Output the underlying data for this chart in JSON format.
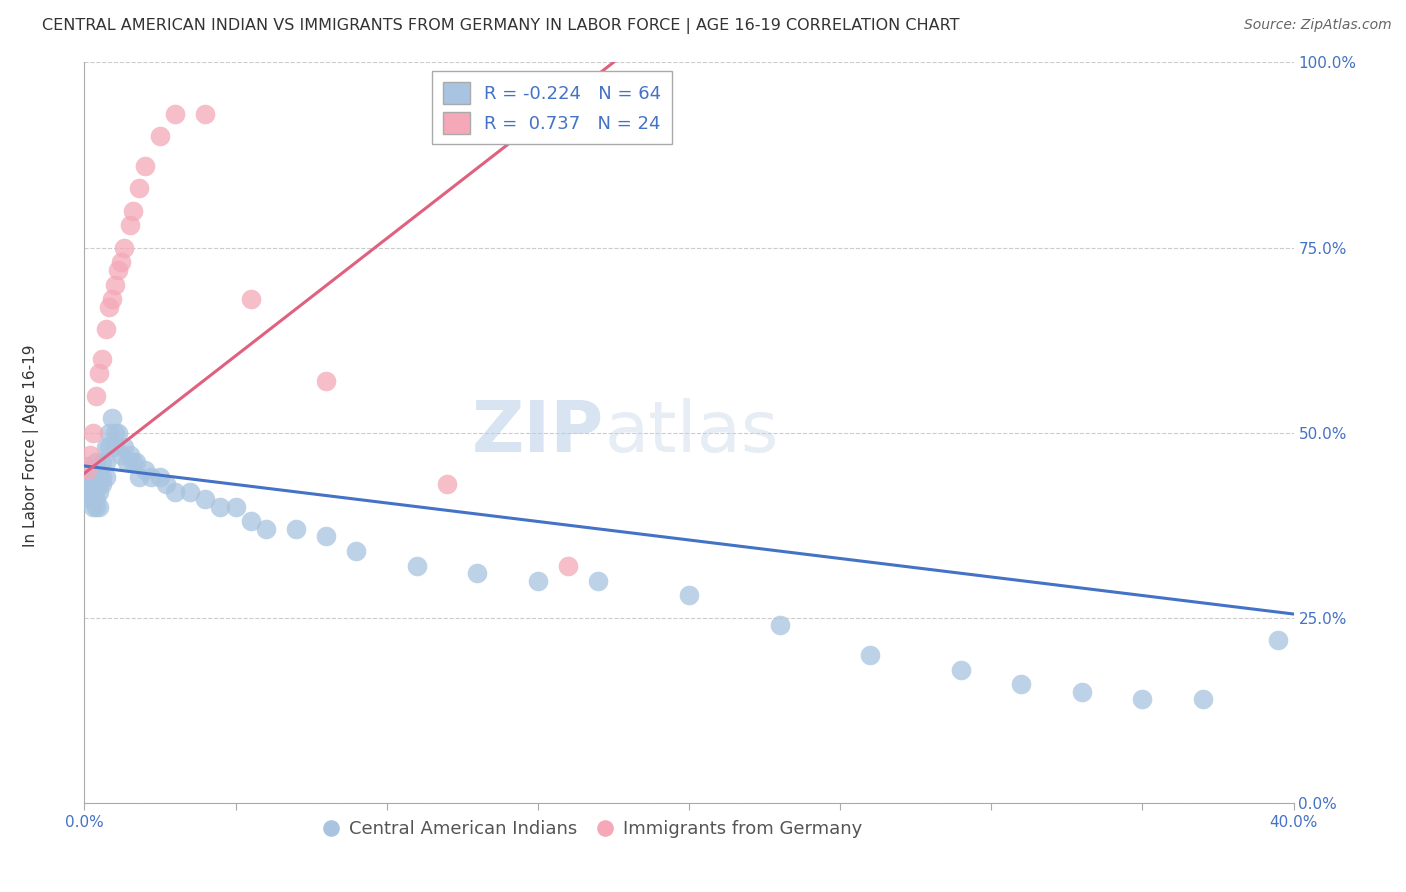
{
  "title": "CENTRAL AMERICAN INDIAN VS IMMIGRANTS FROM GERMANY IN LABOR FORCE | AGE 16-19 CORRELATION CHART",
  "source": "Source: ZipAtlas.com",
  "ylabel": "In Labor Force | Age 16-19",
  "blue_label": "Central American Indians",
  "pink_label": "Immigrants from Germany",
  "blue_R": -0.224,
  "blue_N": 64,
  "pink_R": 0.737,
  "pink_N": 24,
  "blue_color": "#a8c4e0",
  "pink_color": "#f4a8b8",
  "blue_line_color": "#4472c4",
  "pink_line_color": "#e06080",
  "watermark_zip": "ZIP",
  "watermark_atlas": "atlas",
  "xlim": [
    0.0,
    0.4
  ],
  "ylim": [
    0.0,
    1.0
  ],
  "background_color": "#ffffff",
  "grid_color": "#cccccc",
  "title_color": "#333333",
  "source_color": "#666666",
  "tick_color": "#4472c4",
  "ylabel_color": "#333333",
  "title_fontsize": 11.5,
  "axis_label_fontsize": 11,
  "tick_fontsize": 11,
  "legend_fontsize": 13,
  "source_fontsize": 10,
  "blue_x": [
    0.001,
    0.001,
    0.001,
    0.002,
    0.002,
    0.002,
    0.003,
    0.003,
    0.003,
    0.003,
    0.004,
    0.004,
    0.004,
    0.004,
    0.005,
    0.005,
    0.005,
    0.005,
    0.006,
    0.006,
    0.006,
    0.007,
    0.007,
    0.007,
    0.008,
    0.008,
    0.009,
    0.01,
    0.01,
    0.011,
    0.012,
    0.013,
    0.014,
    0.015,
    0.016,
    0.017,
    0.018,
    0.02,
    0.022,
    0.025,
    0.027,
    0.03,
    0.035,
    0.04,
    0.045,
    0.05,
    0.055,
    0.06,
    0.07,
    0.08,
    0.09,
    0.11,
    0.13,
    0.15,
    0.17,
    0.2,
    0.23,
    0.26,
    0.29,
    0.31,
    0.33,
    0.35,
    0.37,
    0.395
  ],
  "blue_y": [
    0.455,
    0.43,
    0.42,
    0.44,
    0.43,
    0.41,
    0.44,
    0.43,
    0.41,
    0.4,
    0.46,
    0.43,
    0.41,
    0.4,
    0.44,
    0.43,
    0.42,
    0.4,
    0.46,
    0.44,
    0.43,
    0.48,
    0.46,
    0.44,
    0.5,
    0.48,
    0.52,
    0.5,
    0.48,
    0.5,
    0.47,
    0.48,
    0.46,
    0.47,
    0.46,
    0.46,
    0.44,
    0.45,
    0.44,
    0.44,
    0.43,
    0.42,
    0.42,
    0.41,
    0.4,
    0.4,
    0.38,
    0.37,
    0.37,
    0.36,
    0.34,
    0.32,
    0.31,
    0.3,
    0.3,
    0.28,
    0.24,
    0.2,
    0.18,
    0.16,
    0.15,
    0.14,
    0.14,
    0.22
  ],
  "pink_x": [
    0.001,
    0.002,
    0.003,
    0.004,
    0.005,
    0.006,
    0.007,
    0.008,
    0.009,
    0.01,
    0.011,
    0.012,
    0.013,
    0.015,
    0.016,
    0.018,
    0.02,
    0.025,
    0.03,
    0.04,
    0.055,
    0.08,
    0.12,
    0.16
  ],
  "pink_y": [
    0.45,
    0.47,
    0.5,
    0.55,
    0.58,
    0.6,
    0.64,
    0.67,
    0.68,
    0.7,
    0.72,
    0.73,
    0.75,
    0.78,
    0.8,
    0.83,
    0.86,
    0.9,
    0.93,
    0.93,
    0.68,
    0.57,
    0.43,
    0.32
  ],
  "blue_line_x": [
    0.0,
    0.4
  ],
  "blue_line_y": [
    0.455,
    0.255
  ],
  "pink_line_x": [
    0.0,
    0.175
  ],
  "pink_line_y": [
    0.445,
    1.0
  ]
}
